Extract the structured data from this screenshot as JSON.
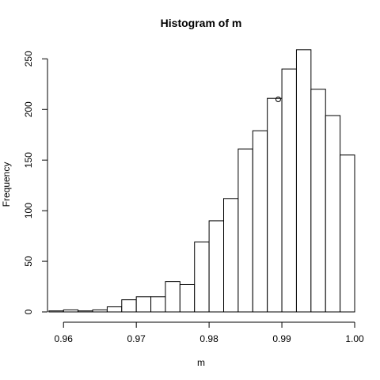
{
  "chart_data": {
    "type": "bar",
    "title": "Histogram of m",
    "xlabel": "m",
    "ylabel": "Frequency",
    "bins": [
      {
        "start": 0.958,
        "end": 0.96,
        "count": 1
      },
      {
        "start": 0.96,
        "end": 0.962,
        "count": 2
      },
      {
        "start": 0.962,
        "end": 0.964,
        "count": 1
      },
      {
        "start": 0.964,
        "end": 0.966,
        "count": 2
      },
      {
        "start": 0.966,
        "end": 0.968,
        "count": 5
      },
      {
        "start": 0.968,
        "end": 0.97,
        "count": 12
      },
      {
        "start": 0.97,
        "end": 0.972,
        "count": 15
      },
      {
        "start": 0.972,
        "end": 0.974,
        "count": 15
      },
      {
        "start": 0.974,
        "end": 0.976,
        "count": 30
      },
      {
        "start": 0.976,
        "end": 0.978,
        "count": 27
      },
      {
        "start": 0.978,
        "end": 0.98,
        "count": 69
      },
      {
        "start": 0.98,
        "end": 0.982,
        "count": 90
      },
      {
        "start": 0.982,
        "end": 0.984,
        "count": 112
      },
      {
        "start": 0.984,
        "end": 0.986,
        "count": 161
      },
      {
        "start": 0.986,
        "end": 0.988,
        "count": 179
      },
      {
        "start": 0.988,
        "end": 0.99,
        "count": 211
      },
      {
        "start": 0.99,
        "end": 0.992,
        "count": 240
      },
      {
        "start": 0.992,
        "end": 0.994,
        "count": 259
      },
      {
        "start": 0.994,
        "end": 0.996,
        "count": 220
      },
      {
        "start": 0.996,
        "end": 0.998,
        "count": 194
      },
      {
        "start": 0.998,
        "end": 1.0,
        "count": 155
      }
    ],
    "points": [
      {
        "x": 0.9895,
        "y": 210
      }
    ],
    "x_ticks": [
      0.96,
      0.97,
      0.98,
      0.99,
      1.0
    ],
    "x_tick_labels": [
      "0.96",
      "0.97",
      "0.98",
      "0.99",
      "1.00"
    ],
    "y_ticks": [
      0,
      50,
      100,
      150,
      200,
      250
    ],
    "y_tick_labels": [
      "0",
      "50",
      "100",
      "150",
      "200",
      "250"
    ],
    "xlim": [
      0.9578,
      1.0
    ],
    "ylim": [
      0,
      262
    ],
    "grid": false,
    "colors": {
      "bar_fill": "#ffffff",
      "bar_stroke": "#000000",
      "axis": "#000000",
      "text": "#000000",
      "background": "#ffffff"
    }
  }
}
